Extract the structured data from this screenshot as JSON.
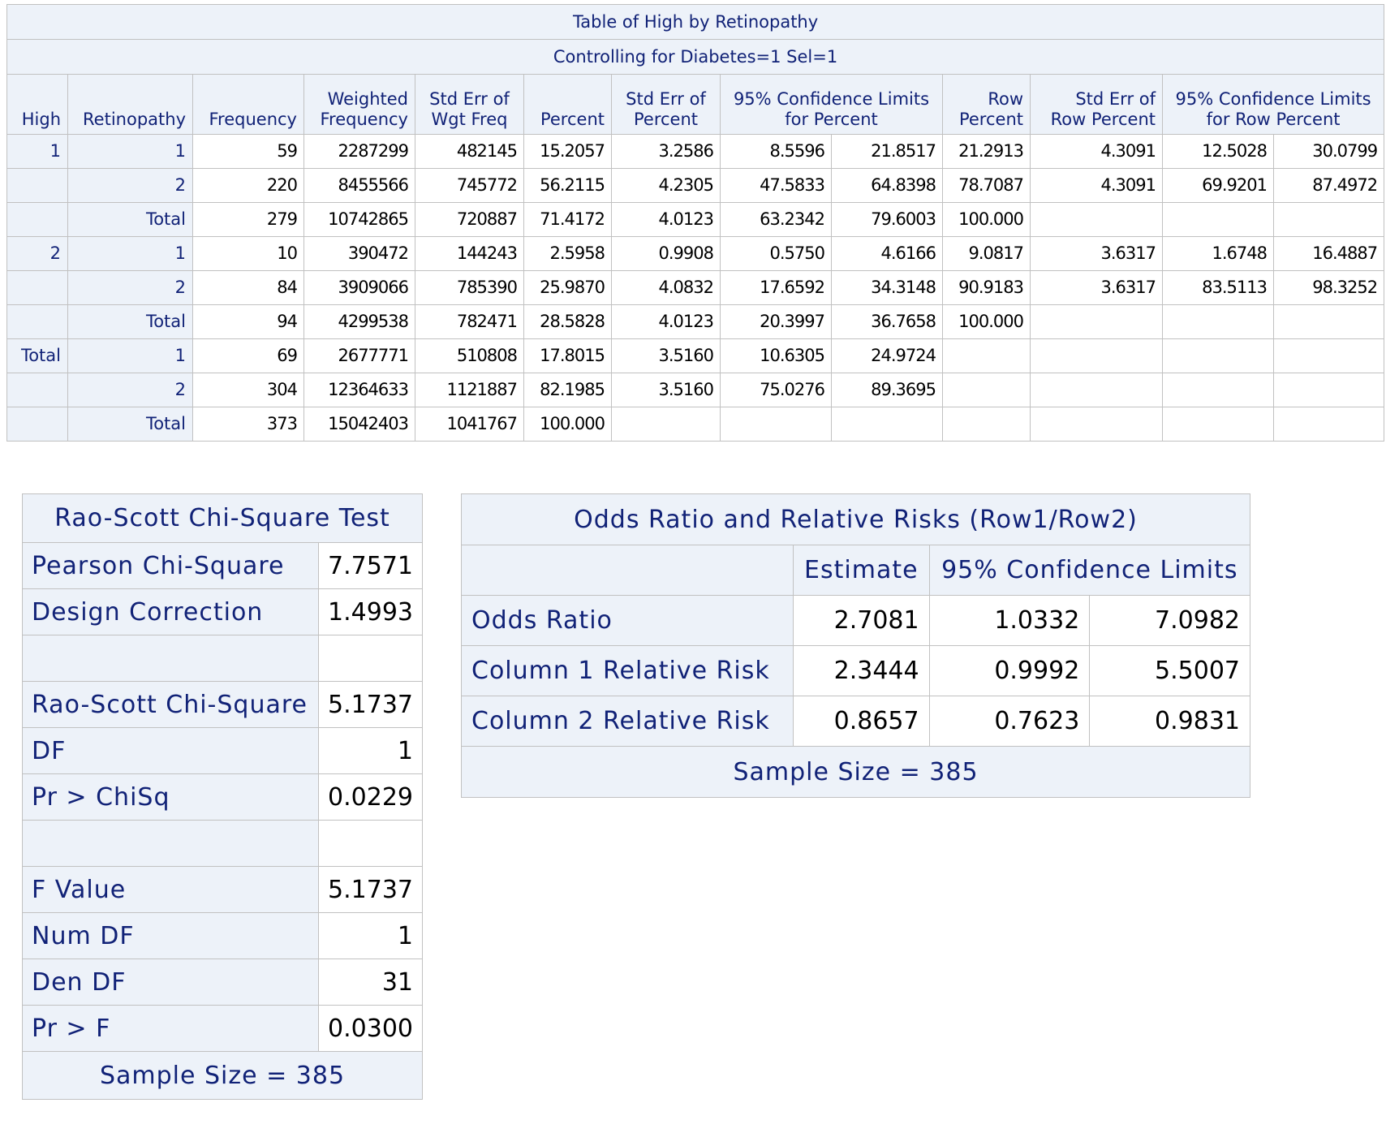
{
  "main_table": {
    "title": "Table of High by Retinopathy",
    "subtitle": "Controlling for Diabetes=1 Sel=1",
    "headers": {
      "high": "High",
      "retinopathy": "Retinopathy",
      "frequency": "Frequency",
      "weighted_frequency": [
        "Weighted",
        "Frequency"
      ],
      "std_err_wgt_freq": [
        "Std Err of",
        "Wgt Freq"
      ],
      "percent": "Percent",
      "std_err_percent": [
        "Std Err of",
        "Percent"
      ],
      "cl_percent": [
        "95% Confidence Limits",
        "for Percent"
      ],
      "row_percent": [
        "Row",
        "Percent"
      ],
      "std_err_row_percent": [
        "Std Err of",
        "Row Percent"
      ],
      "cl_row_percent": [
        "95% Confidence Limits",
        "for Row Percent"
      ]
    },
    "rows": [
      {
        "high": "1",
        "ret": "1",
        "cells": [
          "59",
          "2287299",
          "482145",
          "15.2057",
          "3.2586",
          "8.5596",
          "21.8517",
          "21.2913",
          "4.3091",
          "12.5028",
          "30.0799"
        ]
      },
      {
        "high": "",
        "ret": "2",
        "cells": [
          "220",
          "8455566",
          "745772",
          "56.2115",
          "4.2305",
          "47.5833",
          "64.8398",
          "78.7087",
          "4.3091",
          "69.9201",
          "87.4972"
        ]
      },
      {
        "high": "",
        "ret": "Total",
        "cells": [
          "279",
          "10742865",
          "720887",
          "71.4172",
          "4.0123",
          "63.2342",
          "79.6003",
          "100.000",
          "",
          "",
          ""
        ]
      },
      {
        "high": "2",
        "ret": "1",
        "cells": [
          "10",
          "390472",
          "144243",
          "2.5958",
          "0.9908",
          "0.5750",
          "4.6166",
          "9.0817",
          "3.6317",
          "1.6748",
          "16.4887"
        ]
      },
      {
        "high": "",
        "ret": "2",
        "cells": [
          "84",
          "3909066",
          "785390",
          "25.9870",
          "4.0832",
          "17.6592",
          "34.3148",
          "90.9183",
          "3.6317",
          "83.5113",
          "98.3252"
        ]
      },
      {
        "high": "",
        "ret": "Total",
        "cells": [
          "94",
          "4299538",
          "782471",
          "28.5828",
          "4.0123",
          "20.3997",
          "36.7658",
          "100.000",
          "",
          "",
          ""
        ]
      },
      {
        "high": "Total",
        "ret": "1",
        "cells": [
          "69",
          "2677771",
          "510808",
          "17.8015",
          "3.5160",
          "10.6305",
          "24.9724",
          "",
          "",
          "",
          ""
        ]
      },
      {
        "high": "",
        "ret": "2",
        "cells": [
          "304",
          "12364633",
          "1121887",
          "82.1985",
          "3.5160",
          "75.0276",
          "89.3695",
          "",
          "",
          "",
          ""
        ]
      },
      {
        "high": "",
        "ret": "Total",
        "cells": [
          "373",
          "15042403",
          "1041767",
          "100.000",
          "",
          "",
          "",
          "",
          "",
          "",
          ""
        ]
      }
    ]
  },
  "rao_scott": {
    "title": "Rao-Scott Chi-Square Test",
    "rows": [
      {
        "label": "Pearson Chi-Square",
        "value": "7.7571"
      },
      {
        "label": "Design Correction",
        "value": "1.4993"
      },
      {
        "label": "",
        "value": ""
      },
      {
        "label": "Rao-Scott Chi-Square",
        "value": "5.1737"
      },
      {
        "label": "DF",
        "value": "1"
      },
      {
        "label": "Pr > ChiSq",
        "value": "0.0229"
      },
      {
        "label": "",
        "value": ""
      },
      {
        "label": "F Value",
        "value": "5.1737"
      },
      {
        "label": "Num DF",
        "value": "1"
      },
      {
        "label": "Den DF",
        "value": "31"
      },
      {
        "label": "Pr > F",
        "value": "0.0300"
      }
    ],
    "footer": "Sample Size = 385"
  },
  "odds_ratio": {
    "title": "Odds Ratio and Relative Risks (Row1/Row2)",
    "col_estimate": "Estimate",
    "col_cl": "95% Confidence Limits",
    "rows": [
      {
        "label": "Odds Ratio",
        "estimate": "2.7081",
        "lower": "1.0332",
        "upper": "7.0982"
      },
      {
        "label": "Column 1 Relative Risk",
        "estimate": "2.3444",
        "lower": "0.9992",
        "upper": "5.5007"
      },
      {
        "label": "Column 2 Relative Risk",
        "estimate": "0.8657",
        "lower": "0.7623",
        "upper": "0.9831"
      }
    ],
    "footer": "Sample Size = 385"
  }
}
